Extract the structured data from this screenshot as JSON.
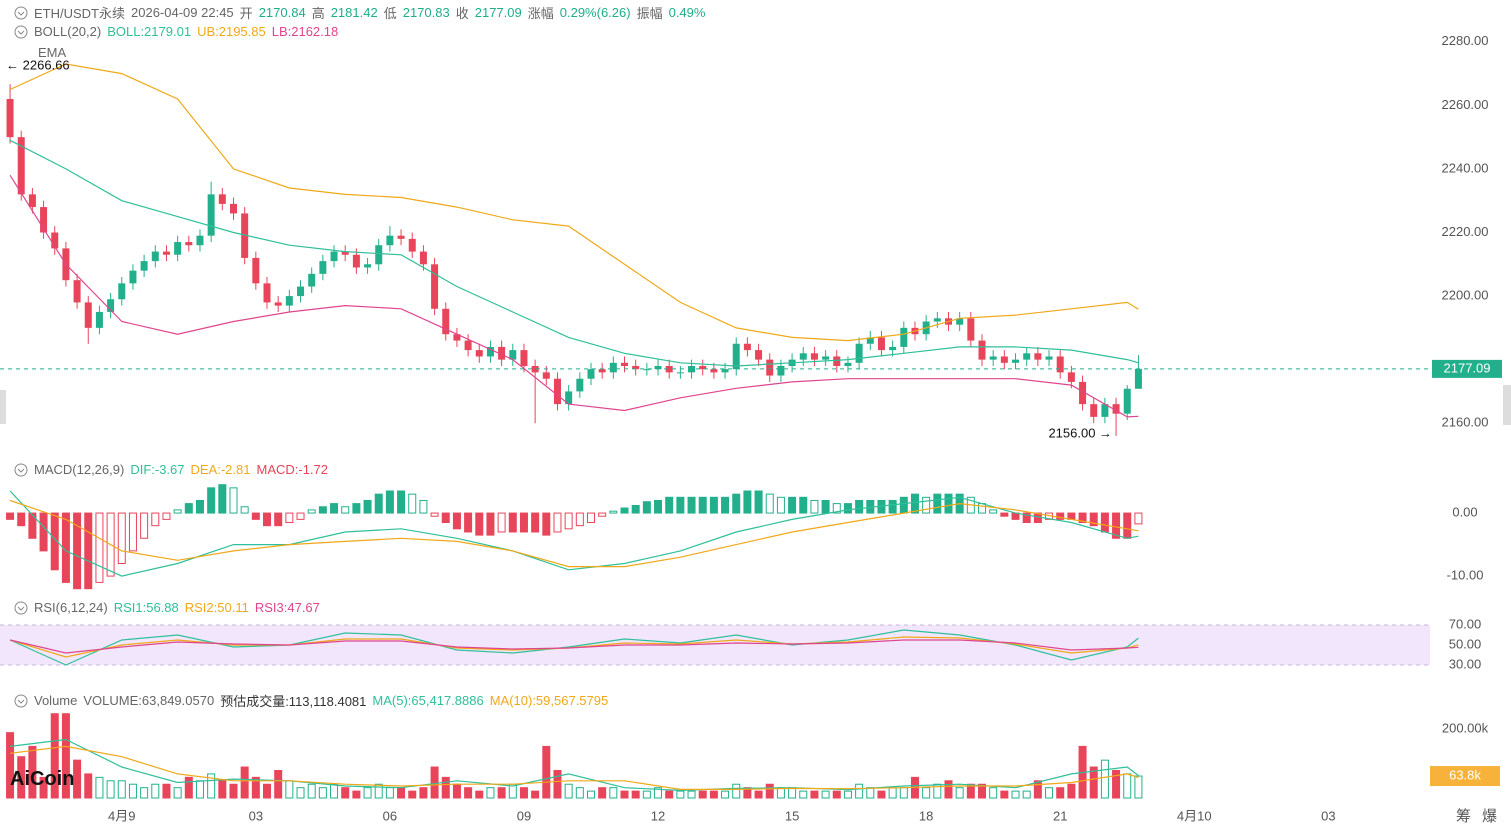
{
  "logo": "AiCoin",
  "side_buttons": [
    "筹",
    "爆"
  ],
  "chart_data": [
    {
      "type": "candlestick",
      "title": "ETH/USDT永续",
      "subtitle": "2026-04-09 22:45",
      "header": [
        [
          "开",
          "2170.84"
        ],
        [
          "高",
          "2181.42"
        ],
        [
          "低",
          "2170.83"
        ],
        [
          "收",
          "2177.09"
        ],
        [
          "涨幅",
          "0.29%(6.26)"
        ],
        [
          "振幅",
          "0.49%"
        ]
      ],
      "indicator": "BOLL(20,2)",
      "indicator2": "EMA",
      "up_color": "#22b08c",
      "down_color": "#e8445a",
      "xlim": [
        -0.9,
        127.1
      ],
      "ylim": [
        2150,
        2290
      ],
      "yticks": [
        {
          "value": 2160,
          "label": "2160.00"
        },
        {
          "value": 2200,
          "label": "2200.00"
        },
        {
          "value": 2220,
          "label": "2220.00"
        },
        {
          "value": 2240,
          "label": "2240.00"
        },
        {
          "value": 2260,
          "label": "2260.00"
        },
        {
          "value": 2280,
          "label": "2280.00"
        }
      ],
      "annotations": {
        "high": "← 2266.66",
        "low": "2156.00 →"
      },
      "open": [
        2262,
        2250,
        2232,
        2228,
        2220,
        2215,
        2205,
        2198,
        2190,
        2195,
        2199,
        2204,
        2208,
        2211,
        2214,
        2213,
        2217,
        2216,
        2219,
        2232,
        2229,
        2226,
        2212,
        2204,
        2198,
        2197,
        2200,
        2203,
        2207,
        2211,
        2214,
        2213,
        2209,
        2210,
        2216,
        2219,
        2218,
        2214,
        2210,
        2196,
        2188,
        2186,
        2183,
        2181,
        2184,
        2180,
        2183,
        2178,
        2176,
        2174,
        2166,
        2170,
        2174,
        2177,
        2176,
        2179,
        2178,
        2177,
        2177,
        2178,
        2176,
        2176,
        2178,
        2177,
        2176,
        2177,
        2185,
        2183,
        2180,
        2175,
        2178,
        2180,
        2182,
        2180,
        2181,
        2178,
        2179,
        2185,
        2187,
        2183,
        2184,
        2190,
        2188,
        2192,
        2193,
        2191,
        2193,
        2186,
        2180,
        2181,
        2179,
        2180,
        2182,
        2180,
        2181,
        2176,
        2173,
        2166,
        2162,
        2166,
        2163,
        2170.84
      ],
      "high": [
        2266.66,
        2252,
        2234,
        2230,
        2222,
        2217,
        2207,
        2200,
        2197,
        2201,
        2206,
        2210,
        2213,
        2216,
        2216,
        2219,
        2219,
        2221,
        2236,
        2234,
        2231,
        2228,
        2214,
        2206,
        2200,
        2202,
        2205,
        2209,
        2213,
        2216,
        2216,
        2215,
        2212,
        2218,
        2222,
        2221,
        2220,
        2216,
        2212,
        2198,
        2190,
        2188,
        2185,
        2186,
        2186,
        2185,
        2185,
        2180,
        2178,
        2176,
        2172,
        2176,
        2179,
        2179,
        2181,
        2181,
        2180,
        2179,
        2180,
        2180,
        2178,
        2180,
        2180,
        2179,
        2179,
        2187,
        2187,
        2185,
        2182,
        2180,
        2182,
        2184,
        2184,
        2183,
        2183,
        2181,
        2187,
        2189,
        2189,
        2186,
        2192,
        2192,
        2194,
        2195,
        2195,
        2195,
        2195,
        2188,
        2183,
        2183,
        2182,
        2184,
        2184,
        2183,
        2183,
        2178,
        2175,
        2168,
        2168,
        2168,
        2172,
        2181.42
      ],
      "low": [
        2248,
        2230,
        2226,
        2218,
        2213,
        2203,
        2196,
        2185,
        2188,
        2193,
        2197,
        2202,
        2206,
        2209,
        2211,
        2211,
        2214,
        2214,
        2217,
        2227,
        2224,
        2210,
        2202,
        2196,
        2195,
        2195,
        2198,
        2201,
        2205,
        2209,
        2211,
        2207,
        2207,
        2208,
        2214,
        2216,
        2212,
        2208,
        2194,
        2186,
        2184,
        2181,
        2179,
        2179,
        2178,
        2178,
        2176,
        2160,
        2172,
        2164,
        2164,
        2168,
        2172,
        2174,
        2174,
        2176,
        2175,
        2175,
        2175,
        2174,
        2174,
        2174,
        2175,
        2174,
        2174,
        2175,
        2181,
        2178,
        2173,
        2173,
        2176,
        2178,
        2178,
        2178,
        2176,
        2176,
        2177,
        2183,
        2181,
        2181,
        2182,
        2186,
        2186,
        2190,
        2189,
        2189,
        2184,
        2178,
        2178,
        2177,
        2177,
        2178,
        2178,
        2178,
        2174,
        2171,
        2164,
        2160,
        2160,
        2156,
        2161,
        2170.83
      ],
      "close": [
        2250,
        2232,
        2228,
        2220,
        2215,
        2205,
        2198,
        2190,
        2195,
        2199,
        2204,
        2208,
        2211,
        2214,
        2213,
        2217,
        2216,
        2219,
        2232,
        2229,
        2226,
        2212,
        2204,
        2198,
        2197,
        2200,
        2203,
        2207,
        2211,
        2214,
        2213,
        2209,
        2210,
        2216,
        2219,
        2218,
        2214,
        2210,
        2196,
        2188,
        2186,
        2183,
        2181,
        2184,
        2180,
        2183,
        2178,
        2176,
        2174,
        2166,
        2170,
        2174,
        2177,
        2176,
        2179,
        2178,
        2177,
        2177,
        2178,
        2176,
        2176,
        2178,
        2177,
        2176,
        2177,
        2185,
        2183,
        2180,
        2175,
        2178,
        2180,
        2182,
        2180,
        2181,
        2178,
        2179,
        2185,
        2187,
        2183,
        2184,
        2190,
        2188,
        2192,
        2193,
        2191,
        2193,
        2186,
        2180,
        2181,
        2179,
        2180,
        2182,
        2180,
        2181,
        2176,
        2173,
        2166,
        2162,
        2166,
        2163,
        2170.84,
        2177.09
      ],
      "line_x": [
        0,
        5,
        10,
        15,
        20,
        25,
        30,
        35,
        40,
        45,
        50,
        55,
        60,
        65,
        70,
        75,
        80,
        85,
        90,
        95,
        100,
        101
      ],
      "series": [
        {
          "name": "BOLL:2179.01",
          "color": "#2fbf9a",
          "values": [
            2249,
            2240,
            2230,
            2225,
            2220,
            2216,
            2214,
            2213,
            2203,
            2195,
            2187,
            2182,
            2179,
            2178,
            2179,
            2180,
            2182,
            2184,
            2184,
            2183,
            2180,
            2179.01
          ]
        },
        {
          "name": "UB:2195.85",
          "color": "#f0a818",
          "values": [
            2265,
            2273,
            2270,
            2262,
            2240,
            2234,
            2232,
            2231,
            2228,
            2224,
            2222,
            2210,
            2198,
            2190,
            2187,
            2186,
            2188,
            2193,
            2194,
            2196,
            2198,
            2195.85
          ]
        },
        {
          "name": "LB:2162.18",
          "color": "#e0458f",
          "values": [
            2238,
            2210,
            2192,
            2188,
            2192,
            2195,
            2197,
            2196,
            2188,
            2180,
            2166,
            2164,
            2168,
            2171,
            2173,
            2174,
            2174,
            2174,
            2174,
            2172,
            2162,
            2162.18
          ]
        }
      ]
    },
    {
      "type": "bar",
      "title": "MACD(12,26,9)",
      "histogram_name": "MACD:-1.72",
      "up_color": "#22b08c",
      "down_color": "#e8445a",
      "xlim": [
        -0.9,
        127.1
      ],
      "ylim": [
        -13,
        8.1
      ],
      "yticks": [
        {
          "value": -10,
          "label": "-10.00"
        },
        {
          "value": 0,
          "label": "0.00"
        }
      ],
      "values": [
        -1,
        -2,
        -4,
        -6,
        -9,
        -11,
        -12,
        -12,
        -11,
        -10,
        -8,
        -6,
        -4,
        -2,
        -1,
        0.5,
        1.5,
        2,
        4,
        4.5,
        4,
        1,
        -1,
        -2,
        -2,
        -1.5,
        -1,
        0.5,
        1,
        1.5,
        1,
        1.5,
        2,
        3,
        3.5,
        3.5,
        3,
        2,
        -0.5,
        -1.5,
        -2.5,
        -3,
        -3.5,
        -3.5,
        -3,
        -3,
        -3,
        -3,
        -3.5,
        -3,
        -2.5,
        -2,
        -1.5,
        -0.5,
        0.3,
        0.8,
        1.2,
        1.8,
        2,
        2.5,
        2.5,
        2.5,
        2.5,
        2.5,
        2.5,
        3,
        3.5,
        3.5,
        3,
        2.5,
        2.5,
        2.5,
        2,
        2,
        1.5,
        1.5,
        2,
        2,
        2,
        2,
        2.5,
        3,
        2.5,
        3,
        3,
        3,
        2.5,
        1.5,
        0.5,
        -0.5,
        -1,
        -1.5,
        -1.5,
        -1,
        -1,
        -1,
        -1.5,
        -2,
        -3,
        -4,
        -4,
        -1.72
      ],
      "line_x": [
        0,
        5,
        10,
        15,
        20,
        25,
        30,
        35,
        40,
        45,
        50,
        55,
        60,
        65,
        70,
        75,
        80,
        85,
        90,
        95,
        100,
        101
      ],
      "series": [
        {
          "name": "DIF:-3.67",
          "color": "#2fbf9a",
          "values": [
            3.5,
            -6,
            -10,
            -8,
            -5,
            -5,
            -3,
            -2.5,
            -4,
            -6,
            -9,
            -8,
            -6,
            -3,
            -1,
            0.5,
            1.5,
            2.5,
            0,
            -1.5,
            -4,
            -3.67
          ]
        },
        {
          "name": "DEA:-2.81",
          "color": "#f0a818",
          "values": [
            2,
            -1,
            -6,
            -7.5,
            -6,
            -5,
            -4.5,
            -4,
            -4.5,
            -6,
            -8.5,
            -8.5,
            -7,
            -5,
            -3,
            -1.5,
            0,
            1.5,
            0.5,
            -1,
            -2.5,
            -2.81
          ]
        }
      ]
    },
    {
      "type": "line",
      "title": "RSI(6,12,24)",
      "band_color": "#f1e6fb",
      "xlim": [
        -0.9,
        127.1
      ],
      "ylim": [
        5,
        90
      ],
      "yticks": [
        {
          "value": 30,
          "label": "30.00"
        },
        {
          "value": 50,
          "label": "50.00"
        },
        {
          "value": 70,
          "label": "70.00"
        }
      ],
      "line_x": [
        0,
        5,
        10,
        15,
        20,
        25,
        30,
        35,
        40,
        45,
        50,
        55,
        60,
        65,
        70,
        75,
        80,
        85,
        90,
        95,
        100,
        101
      ],
      "series": [
        {
          "name": "RSI1:56.88",
          "color": "#2fbf9a",
          "values": [
            55,
            30,
            55,
            60,
            48,
            50,
            62,
            60,
            45,
            42,
            48,
            56,
            52,
            60,
            50,
            55,
            65,
            60,
            50,
            35,
            48,
            56.88
          ]
        },
        {
          "name": "RSI2:50.11",
          "color": "#f0a818",
          "values": [
            55,
            38,
            50,
            55,
            50,
            50,
            56,
            56,
            47,
            45,
            47,
            52,
            51,
            55,
            51,
            53,
            58,
            57,
            51,
            42,
            47,
            50.11
          ]
        },
        {
          "name": "RSI3:47.67",
          "color": "#e0458f",
          "values": [
            55,
            42,
            48,
            53,
            51,
            50,
            54,
            54,
            48,
            46,
            47,
            50,
            50,
            52,
            51,
            52,
            55,
            55,
            52,
            45,
            47,
            47.67
          ]
        }
      ]
    },
    {
      "type": "bar",
      "title": "Volume",
      "volume_name": "VOLUME:63,849.0570",
      "estimate_name": "预估成交量:113,118.4081",
      "last_label": "63.8k",
      "label_color": "#f7b23b",
      "xlim": [
        -0.9,
        127.1
      ],
      "ylim": [
        0,
        250000
      ],
      "yticks": [
        {
          "value": 200000,
          "label": "200.00k"
        }
      ],
      "xticks": [
        {
          "value": 10,
          "label": "4月9"
        },
        {
          "value": 22,
          "label": "03"
        },
        {
          "value": 34,
          "label": "06"
        },
        {
          "value": 46,
          "label": "09"
        },
        {
          "value": 58,
          "label": "12"
        },
        {
          "value": 70,
          "label": "15"
        },
        {
          "value": 82,
          "label": "18"
        },
        {
          "value": 94,
          "label": "21"
        },
        {
          "value": 106,
          "label": "4月10"
        },
        {
          "value": 118,
          "label": "03"
        }
      ],
      "values": [
        190000,
        120000,
        150000,
        60000,
        245000,
        245000,
        110000,
        70000,
        60000,
        50000,
        50000,
        40000,
        30000,
        40000,
        40000,
        30000,
        60000,
        50000,
        70000,
        50000,
        40000,
        90000,
        60000,
        40000,
        80000,
        50000,
        30000,
        40000,
        30000,
        40000,
        30000,
        20000,
        30000,
        40000,
        30000,
        30000,
        20000,
        30000,
        90000,
        60000,
        40000,
        30000,
        20000,
        30000,
        30000,
        40000,
        30000,
        20000,
        150000,
        80000,
        40000,
        30000,
        20000,
        30000,
        30000,
        20000,
        20000,
        20000,
        30000,
        20000,
        20000,
        20000,
        20000,
        20000,
        20000,
        40000,
        30000,
        20000,
        40000,
        30000,
        30000,
        20000,
        20000,
        20000,
        20000,
        20000,
        40000,
        30000,
        20000,
        30000,
        30000,
        60000,
        30000,
        40000,
        50000,
        30000,
        40000,
        40000,
        30000,
        20000,
        20000,
        20000,
        50000,
        30000,
        30000,
        40000,
        150000,
        90000,
        110000,
        80000,
        70000,
        63849.057
      ],
      "line_x": [
        0,
        5,
        10,
        15,
        20,
        25,
        30,
        35,
        40,
        45,
        50,
        55,
        60,
        65,
        70,
        75,
        80,
        85,
        90,
        95,
        100,
        101
      ],
      "series": [
        {
          "name": "MA(5):65,417.8886",
          "color": "#2fbf9a",
          "values": [
            150000,
            170000,
            90000,
            45000,
            55000,
            50000,
            35000,
            30000,
            50000,
            35000,
            70000,
            30000,
            22000,
            28000,
            30000,
            24000,
            35000,
            40000,
            30000,
            70000,
            90000,
            65417.8886
          ]
        },
        {
          "name": "MA(10):59,567.5795",
          "color": "#f0a818",
          "values": [
            130000,
            150000,
            120000,
            70000,
            50000,
            50000,
            40000,
            35000,
            40000,
            40000,
            50000,
            50000,
            25000,
            25000,
            28000,
            27000,
            30000,
            35000,
            35000,
            45000,
            70000,
            59567.5795
          ]
        }
      ]
    }
  ]
}
